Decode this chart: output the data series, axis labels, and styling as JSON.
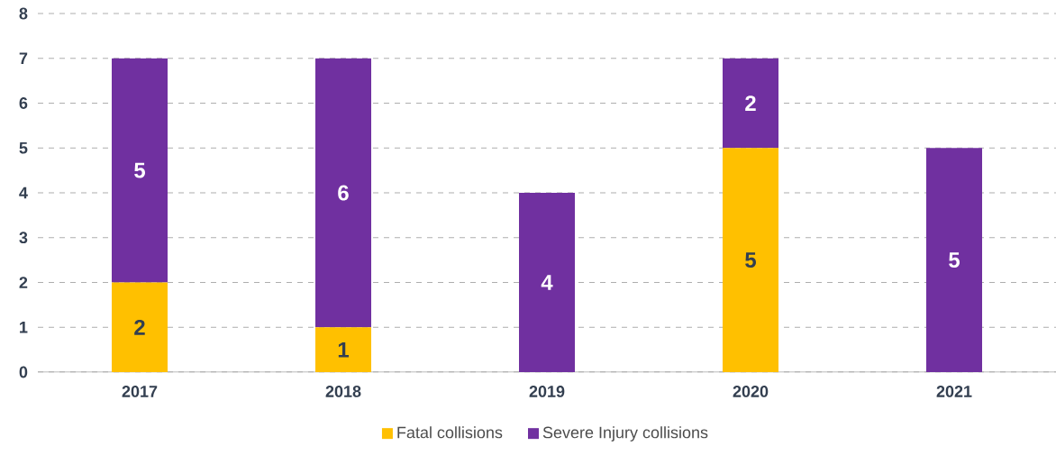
{
  "chart_data": {
    "type": "bar",
    "stacked": true,
    "categories": [
      "2017",
      "2018",
      "2019",
      "2020",
      "2021"
    ],
    "series": [
      {
        "name": "Fatal collisions",
        "color": "#ffc000",
        "values": [
          2,
          1,
          0,
          5,
          0
        ],
        "value_labels": [
          "2",
          "1",
          null,
          "5",
          null
        ]
      },
      {
        "name": "Severe Injury collisions",
        "color": "#7030a0",
        "values": [
          5,
          6,
          4,
          2,
          5
        ],
        "value_labels": [
          "5",
          "6",
          "4",
          "2",
          "5"
        ]
      }
    ],
    "ylim": [
      0,
      8
    ],
    "yticks": [
      0,
      1,
      2,
      3,
      4,
      5,
      6,
      7,
      8
    ],
    "grid": "y",
    "legend": "bottom"
  }
}
